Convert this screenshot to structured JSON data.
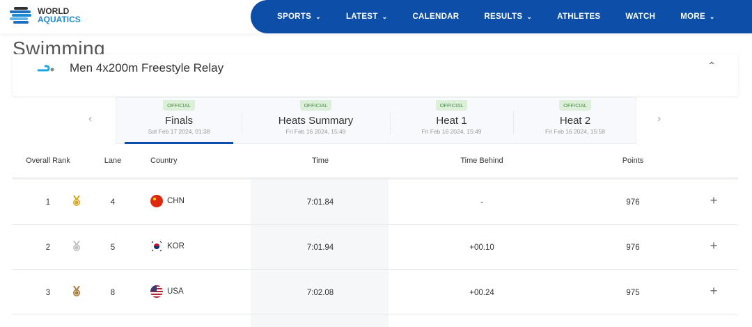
{
  "header": {
    "logo": {
      "line1": "WORLD",
      "line2": "AQUATICS"
    },
    "nav": [
      {
        "label": "SPORTS",
        "dropdown": true
      },
      {
        "label": "LATEST",
        "dropdown": true
      },
      {
        "label": "CALENDAR",
        "dropdown": false
      },
      {
        "label": "RESULTS",
        "dropdown": true
      },
      {
        "label": "ATHLETES",
        "dropdown": false
      },
      {
        "label": "WATCH",
        "dropdown": false
      },
      {
        "label": "MORE",
        "dropdown": true
      }
    ]
  },
  "page_title": "Swimming",
  "event": {
    "name": "Men 4x200m Freestyle Relay",
    "icon": "swimming-icon"
  },
  "tabs": [
    {
      "badge": "OFFICIAL",
      "name": "Finals",
      "date": "Sat Feb 17 2024, 01:38",
      "active": true
    },
    {
      "badge": "OFFICIAL",
      "name": "Heats Summary",
      "date": "Fri Feb 16 2024, 15:49"
    },
    {
      "badge": "OFFICIAL",
      "name": "Heat 1",
      "date": "Fri Feb 16 2024, 15:49"
    },
    {
      "badge": "OFFICIAL",
      "name": "Heat 2",
      "date": "Fri Feb 16 2024, 15:58"
    }
  ],
  "table": {
    "headers": [
      "Overall Rank",
      "Lane",
      "Country",
      "Time",
      "Time Behind",
      "Points"
    ],
    "rows": [
      {
        "rank": "1",
        "medal": "gold",
        "lane": "4",
        "country": "CHN",
        "time": "7:01.84",
        "behind": "-",
        "points": "976"
      },
      {
        "rank": "2",
        "medal": "silver",
        "lane": "5",
        "country": "KOR",
        "time": "7:01.94",
        "behind": "+00.10",
        "points": "976"
      },
      {
        "rank": "3",
        "medal": "bronze",
        "lane": "8",
        "country": "USA",
        "time": "7:02.08",
        "behind": "+00.24",
        "points": "975"
      }
    ]
  },
  "colors": {
    "brand": "#0d4fa8",
    "gold": "#d9a520",
    "silver": "#c0c0c0",
    "bronze": "#a8793a",
    "official_bg": "#dcefd9"
  }
}
